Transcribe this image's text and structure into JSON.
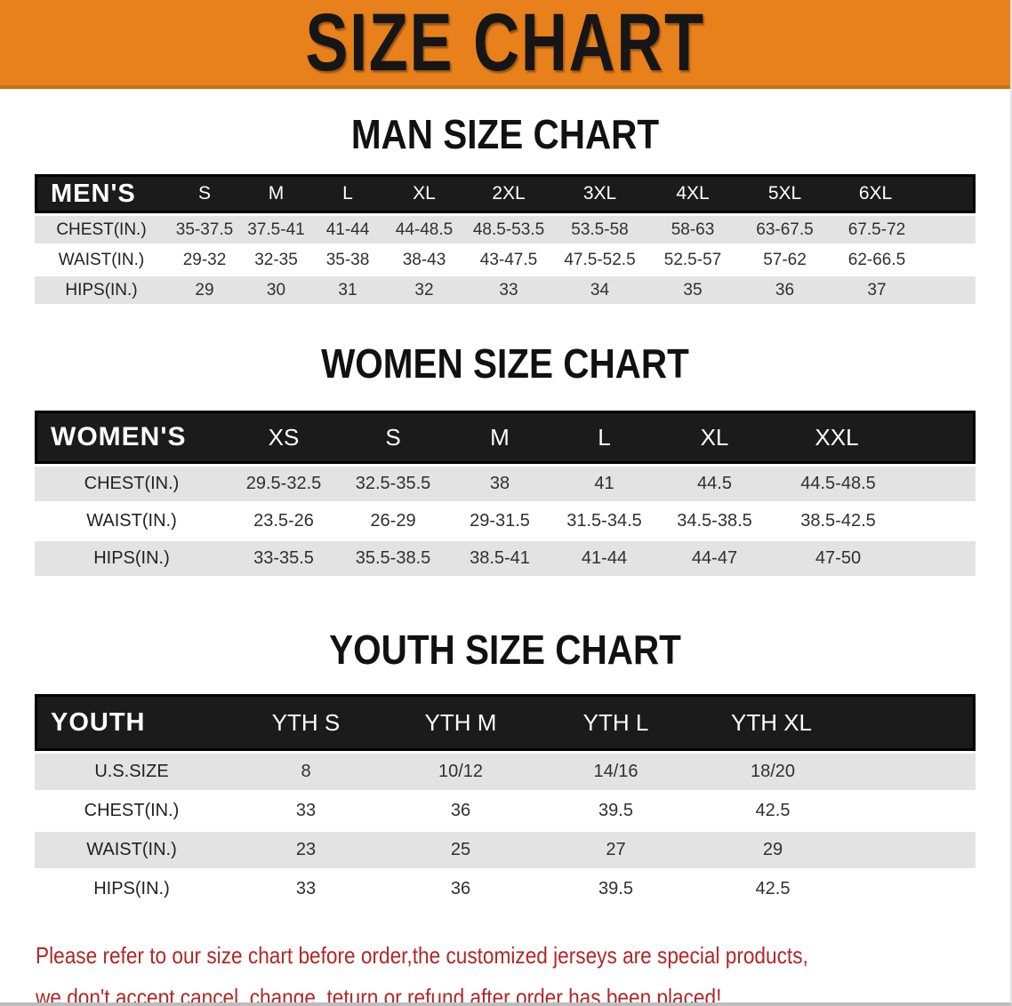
{
  "banner": {
    "title": "SIZE CHART"
  },
  "sections": [
    {
      "title": "MAN SIZE CHART",
      "header_label": "MEN'S",
      "columns": [
        "S",
        "M",
        "L",
        "XL",
        "2XL",
        "3XL",
        "4XL",
        "5XL",
        "6XL"
      ],
      "rows": [
        {
          "label": "CHEST(IN.)",
          "values": [
            "35-37.5",
            "37.5-41",
            "41-44",
            "44-48.5",
            "48.5-53.5",
            "53.5-58",
            "58-63",
            "63-67.5",
            "67.5-72"
          ]
        },
        {
          "label": "WAIST(IN.)",
          "values": [
            "29-32",
            "32-35",
            "35-38",
            "38-43",
            "43-47.5",
            "47.5-52.5",
            "52.5-57",
            "57-62",
            "62-66.5"
          ]
        },
        {
          "label": "HIPS(IN.)",
          "values": [
            "29",
            "30",
            "31",
            "32",
            "33",
            "34",
            "35",
            "36",
            "37"
          ]
        }
      ]
    },
    {
      "title": "WOMEN SIZE CHART",
      "header_label": "WOMEN'S",
      "columns": [
        "XS",
        "S",
        "M",
        "L",
        "XL",
        "XXL"
      ],
      "rows": [
        {
          "label": "CHEST(IN.)",
          "values": [
            "29.5-32.5",
            "32.5-35.5",
            "38",
            "41",
            "44.5",
            "44.5-48.5"
          ]
        },
        {
          "label": "WAIST(IN.)",
          "values": [
            "23.5-26",
            "26-29",
            "29-31.5",
            "31.5-34.5",
            "34.5-38.5",
            "38.5-42.5"
          ]
        },
        {
          "label": "HIPS(IN.)",
          "values": [
            "33-35.5",
            "35.5-38.5",
            "38.5-41",
            "41-44",
            "44-47",
            "47-50"
          ]
        }
      ]
    },
    {
      "title": "YOUTH SIZE CHART",
      "header_label": "YOUTH",
      "columns": [
        "YTH S",
        "YTH M",
        "YTH L",
        "YTH XL"
      ],
      "rows": [
        {
          "label": "U.S.SIZE",
          "values": [
            "8",
            "10/12",
            "14/16",
            "18/20"
          ]
        },
        {
          "label": "CHEST(IN.)",
          "values": [
            "33",
            "36",
            "39.5",
            "42.5"
          ]
        },
        {
          "label": "WAIST(IN.)",
          "values": [
            "23",
            "25",
            "27",
            "29"
          ]
        },
        {
          "label": "HIPS(IN.)",
          "values": [
            "33",
            "36",
            "39.5",
            "42.5"
          ]
        }
      ]
    }
  ],
  "disclaimer": {
    "lines": [
      "Please refer to our size chart before order,the customized jerseys are special products,",
      "we don't accept cancel, change, teturn or refund after order has been placed!"
    ]
  },
  "colors": {
    "banner_bg": "#E8811B",
    "banner_edge": "#C96F0E",
    "banner_text": "#161616",
    "table_header_bg": "#1B1B1B",
    "table_header_border": "#000000",
    "table_header_text": "#FFFFFF",
    "row_shaded": "#E3E3E3",
    "row_plain": "#FFFFFF",
    "cell_text": "#303030",
    "heading_text": "#111111",
    "disclaimer_text": "#B22727"
  }
}
